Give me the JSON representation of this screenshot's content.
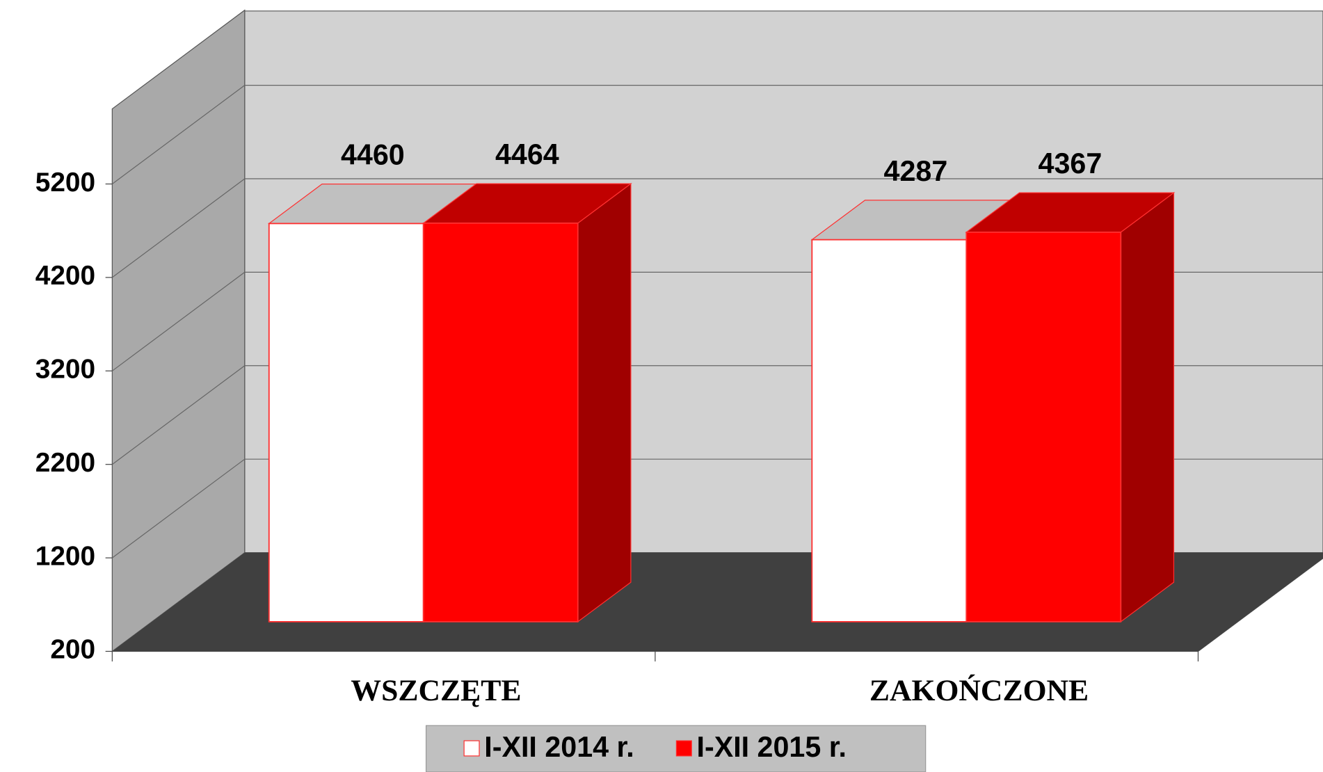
{
  "chart_data": {
    "type": "bar3d",
    "categories": [
      "WSZCZĘTE",
      "ZAKOŃCZONE"
    ],
    "series": [
      {
        "name": "I-XII 2014 r.",
        "color": "#ffffff",
        "values": [
          4460,
          4287
        ]
      },
      {
        "name": "I-XII 2015 r.",
        "color": "#ff0000",
        "values": [
          4464,
          4367
        ]
      }
    ],
    "ylim": [
      200,
      6000
    ],
    "yticks": [
      200,
      1200,
      2200,
      3200,
      4200,
      5200
    ],
    "grid": true,
    "legend": "bottom"
  }
}
